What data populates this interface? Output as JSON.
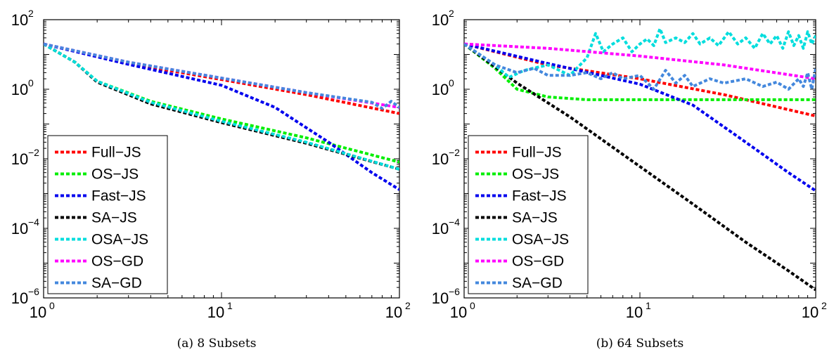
{
  "chart_data": [
    {
      "type": "line",
      "caption": "(a) 8 Subsets",
      "xscale": "log",
      "yscale": "log",
      "xlim": [
        1,
        100
      ],
      "ylim": [
        1e-06,
        100
      ],
      "x_ticks": [
        {
          "base": "10",
          "exp": "0"
        },
        {
          "base": "10",
          "exp": "1"
        },
        {
          "base": "10",
          "exp": "2"
        }
      ],
      "y_ticks": [
        {
          "base": "10",
          "exp": "2"
        },
        {
          "base": "10",
          "exp": "0"
        },
        {
          "base": "10",
          "exp": "−2"
        },
        {
          "base": "10",
          "exp": "−4"
        },
        {
          "base": "10",
          "exp": "−6"
        }
      ],
      "legend": "lower-left",
      "series": [
        {
          "name": "Full−JS",
          "color": "#ff0000",
          "points": [
            [
              1,
              20
            ],
            [
              3,
              5.5
            ],
            [
              10,
              1.9
            ],
            [
              30,
              0.7
            ],
            [
              100,
              0.2
            ]
          ]
        },
        {
          "name": "OS−JS",
          "color": "#00ee00",
          "points": [
            [
              1,
              20
            ],
            [
              1.5,
              6
            ],
            [
              2,
              1.7
            ],
            [
              4,
              0.45
            ],
            [
              10,
              0.14
            ],
            [
              30,
              0.04
            ],
            [
              100,
              0.008
            ]
          ]
        },
        {
          "name": "Fast−JS",
          "color": "#0000ee",
          "points": [
            [
              1,
              20
            ],
            [
              3,
              5.2
            ],
            [
              10,
              1.3
            ],
            [
              20,
              0.3
            ],
            [
              40,
              0.03
            ],
            [
              70,
              0.004
            ],
            [
              100,
              0.0013
            ]
          ]
        },
        {
          "name": "SA−JS",
          "color": "#000000",
          "points": [
            [
              1,
              20
            ],
            [
              1.5,
              6
            ],
            [
              2,
              1.6
            ],
            [
              4,
              0.38
            ],
            [
              10,
              0.11
            ],
            [
              30,
              0.028
            ],
            [
              100,
              0.005
            ]
          ]
        },
        {
          "name": "OSA−JS",
          "color": "#00dddd",
          "points": [
            [
              1,
              20
            ],
            [
              1.5,
              6
            ],
            [
              2,
              1.7
            ],
            [
              4,
              0.42
            ],
            [
              10,
              0.12
            ],
            [
              30,
              0.03
            ],
            [
              100,
              0.005
            ]
          ]
        },
        {
          "name": "OS−GD",
          "color": "#ff00ff",
          "points": [
            [
              1,
              20
            ],
            [
              3,
              6
            ],
            [
              10,
              2.1
            ],
            [
              30,
              0.8
            ],
            [
              100,
              0.3
            ]
          ]
        },
        {
          "name": "SA−GD",
          "color": "#4488dd",
          "points": [
            [
              1,
              20
            ],
            [
              3,
              6
            ],
            [
              10,
              2.1
            ],
            [
              30,
              0.8
            ],
            [
              70,
              0.42
            ],
            [
              80,
              0.28
            ],
            [
              90,
              0.45
            ],
            [
              100,
              0.3
            ]
          ]
        }
      ]
    },
    {
      "type": "line",
      "caption": "(b) 64 Subsets",
      "xscale": "log",
      "yscale": "log",
      "xlim": [
        1,
        100
      ],
      "ylim": [
        1e-06,
        100
      ],
      "x_ticks": [
        {
          "base": "10",
          "exp": "0"
        },
        {
          "base": "10",
          "exp": "1"
        },
        {
          "base": "10",
          "exp": "2"
        }
      ],
      "y_ticks": [
        {
          "base": "10",
          "exp": "2"
        },
        {
          "base": "10",
          "exp": "0"
        },
        {
          "base": "10",
          "exp": "−2"
        },
        {
          "base": "10",
          "exp": "−4"
        },
        {
          "base": "10",
          "exp": "−6"
        }
      ],
      "legend": "lower-left",
      "series": [
        {
          "name": "Full−JS",
          "color": "#ff0000",
          "points": [
            [
              1,
              20
            ],
            [
              3,
              5
            ],
            [
              10,
              2
            ],
            [
              30,
              0.7
            ],
            [
              100,
              0.17
            ]
          ]
        },
        {
          "name": "OS−JS",
          "color": "#00ee00",
          "points": [
            [
              1,
              20
            ],
            [
              1.5,
              4
            ],
            [
              2,
              1
            ],
            [
              3,
              0.6
            ],
            [
              5,
              0.5
            ],
            [
              10,
              0.5
            ],
            [
              30,
              0.5
            ],
            [
              100,
              0.5
            ]
          ]
        },
        {
          "name": "Fast−JS",
          "color": "#0000ee",
          "points": [
            [
              1,
              20
            ],
            [
              3,
              5.5
            ],
            [
              10,
              1.4
            ],
            [
              20,
              0.35
            ],
            [
              40,
              0.03
            ],
            [
              70,
              0.004
            ],
            [
              100,
              0.0012
            ]
          ]
        },
        {
          "name": "SA−JS",
          "color": "#000000",
          "points": [
            [
              1,
              20
            ],
            [
              2,
              1.5
            ],
            [
              4,
              0.16
            ],
            [
              10,
              0.006
            ],
            [
              20,
              0.0005
            ],
            [
              40,
              4e-05
            ],
            [
              70,
              6e-06
            ],
            [
              100,
              1.7e-06
            ]
          ]
        },
        {
          "name": "OSA−JS",
          "color": "#00dddd",
          "points": [
            [
              1,
              20
            ],
            [
              1.5,
              5
            ],
            [
              1.8,
              2.2
            ],
            [
              2.2,
              3.5
            ],
            [
              3,
              5
            ],
            [
              4,
              2.5
            ],
            [
              5,
              8
            ],
            [
              5.6,
              40
            ],
            [
              6.2,
              12
            ],
            [
              7,
              20
            ],
            [
              8,
              30
            ],
            [
              9,
              12
            ],
            [
              10,
              20
            ],
            [
              11,
              28
            ],
            [
              12,
              18
            ],
            [
              13,
              55
            ],
            [
              14,
              22
            ],
            [
              16,
              30
            ],
            [
              18,
              22
            ],
            [
              20,
              40
            ],
            [
              22,
              20
            ],
            [
              25,
              30
            ],
            [
              28,
              18
            ],
            [
              32,
              45
            ],
            [
              36,
              20
            ],
            [
              40,
              30
            ],
            [
              45,
              15
            ],
            [
              50,
              40
            ],
            [
              55,
              20
            ],
            [
              60,
              35
            ],
            [
              65,
              15
            ],
            [
              70,
              45
            ],
            [
              75,
              18
            ],
            [
              80,
              35
            ],
            [
              85,
              15
            ],
            [
              90,
              45
            ],
            [
              95,
              20
            ],
            [
              100,
              35
            ]
          ]
        },
        {
          "name": "OS−GD",
          "color": "#ff00ff",
          "points": [
            [
              1,
              20
            ],
            [
              3,
              15
            ],
            [
              10,
              9
            ],
            [
              30,
              5
            ],
            [
              100,
              2
            ]
          ]
        },
        {
          "name": "SA−GD",
          "color": "#4488dd",
          "points": [
            [
              1,
              20
            ],
            [
              1.5,
              5
            ],
            [
              2,
              3
            ],
            [
              2.5,
              4
            ],
            [
              3,
              2.5
            ],
            [
              4,
              2.5
            ],
            [
              5,
              3
            ],
            [
              6,
              2
            ],
            [
              7,
              3
            ],
            [
              8,
              2
            ],
            [
              10,
              2.5
            ],
            [
              12,
              1
            ],
            [
              14,
              3.5
            ],
            [
              16,
              1.5
            ],
            [
              18,
              2.5
            ],
            [
              20,
              1.2
            ],
            [
              25,
              2
            ],
            [
              30,
              1.5
            ],
            [
              40,
              2
            ],
            [
              50,
              1.2
            ],
            [
              60,
              1.6
            ],
            [
              70,
              1
            ],
            [
              80,
              2
            ],
            [
              85,
              1.2
            ],
            [
              90,
              3
            ],
            [
              95,
              1
            ],
            [
              100,
              4
            ]
          ]
        }
      ]
    }
  ]
}
